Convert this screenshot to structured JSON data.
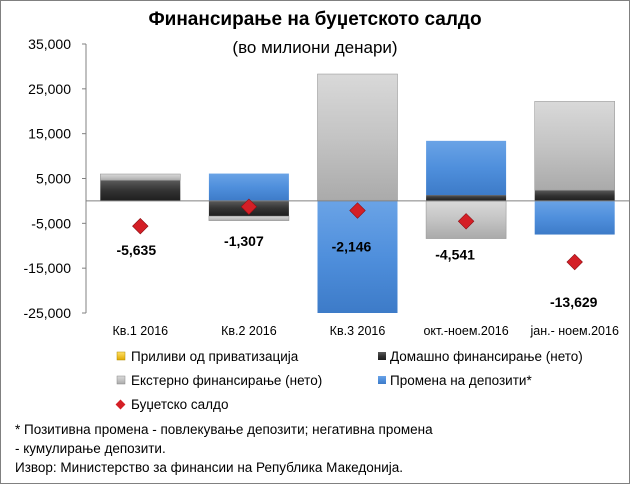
{
  "chart_data": {
    "type": "bar",
    "stacked": true,
    "title": "Финансирање на буџетското салдо",
    "subtitle": "(во милиони денари)",
    "categories": [
      "Кв.1 2016",
      "Кв.2 2016",
      "Кв.3 2016",
      "окт.-ноем.2016",
      "јан.- ноем.2016"
    ],
    "y_ticks": [
      "35,000",
      "25,000",
      "15,000",
      "5,000",
      "-5,000",
      "-15,000",
      "-25,000"
    ],
    "ylim": [
      -25000,
      35000
    ],
    "series": [
      {
        "name": "Приливи од приватизација",
        "kind": "bar",
        "color": "#f2c200",
        "values": [
          0,
          0,
          0,
          0,
          0
        ]
      },
      {
        "name": "Домашно финансирање (нето)",
        "kind": "bar",
        "color": "#3a3a3a",
        "values": [
          4600,
          -3400,
          0,
          1300,
          2400
        ]
      },
      {
        "name": "Екстерно финансирање (нето)",
        "kind": "bar",
        "color": "#bdbdbd",
        "values": [
          1400,
          -1000,
          28300,
          -8400,
          19800
        ]
      },
      {
        "name": "Промена на депозити*",
        "kind": "bar",
        "color": "#4f8fdc",
        "values": [
          0,
          6100,
          -25000,
          12100,
          -7500
        ]
      },
      {
        "name": "Буџетско салдо",
        "kind": "marker",
        "color": "#d41f26",
        "values": [
          -5635,
          -1307,
          -2146,
          -4541,
          -13629
        ]
      }
    ],
    "data_labels": [
      "-5,635",
      "-1,307",
      "-2,146",
      "-4,541",
      "-13,629"
    ],
    "legend_position": "bottom",
    "grid": false
  },
  "footnote": {
    "line1": "* Позитивна промена - повлекување депозити; негативна промена",
    "line2": "- кумулирање депозити.",
    "source": "Извор: Министерство за финансии на Република Македонија."
  }
}
